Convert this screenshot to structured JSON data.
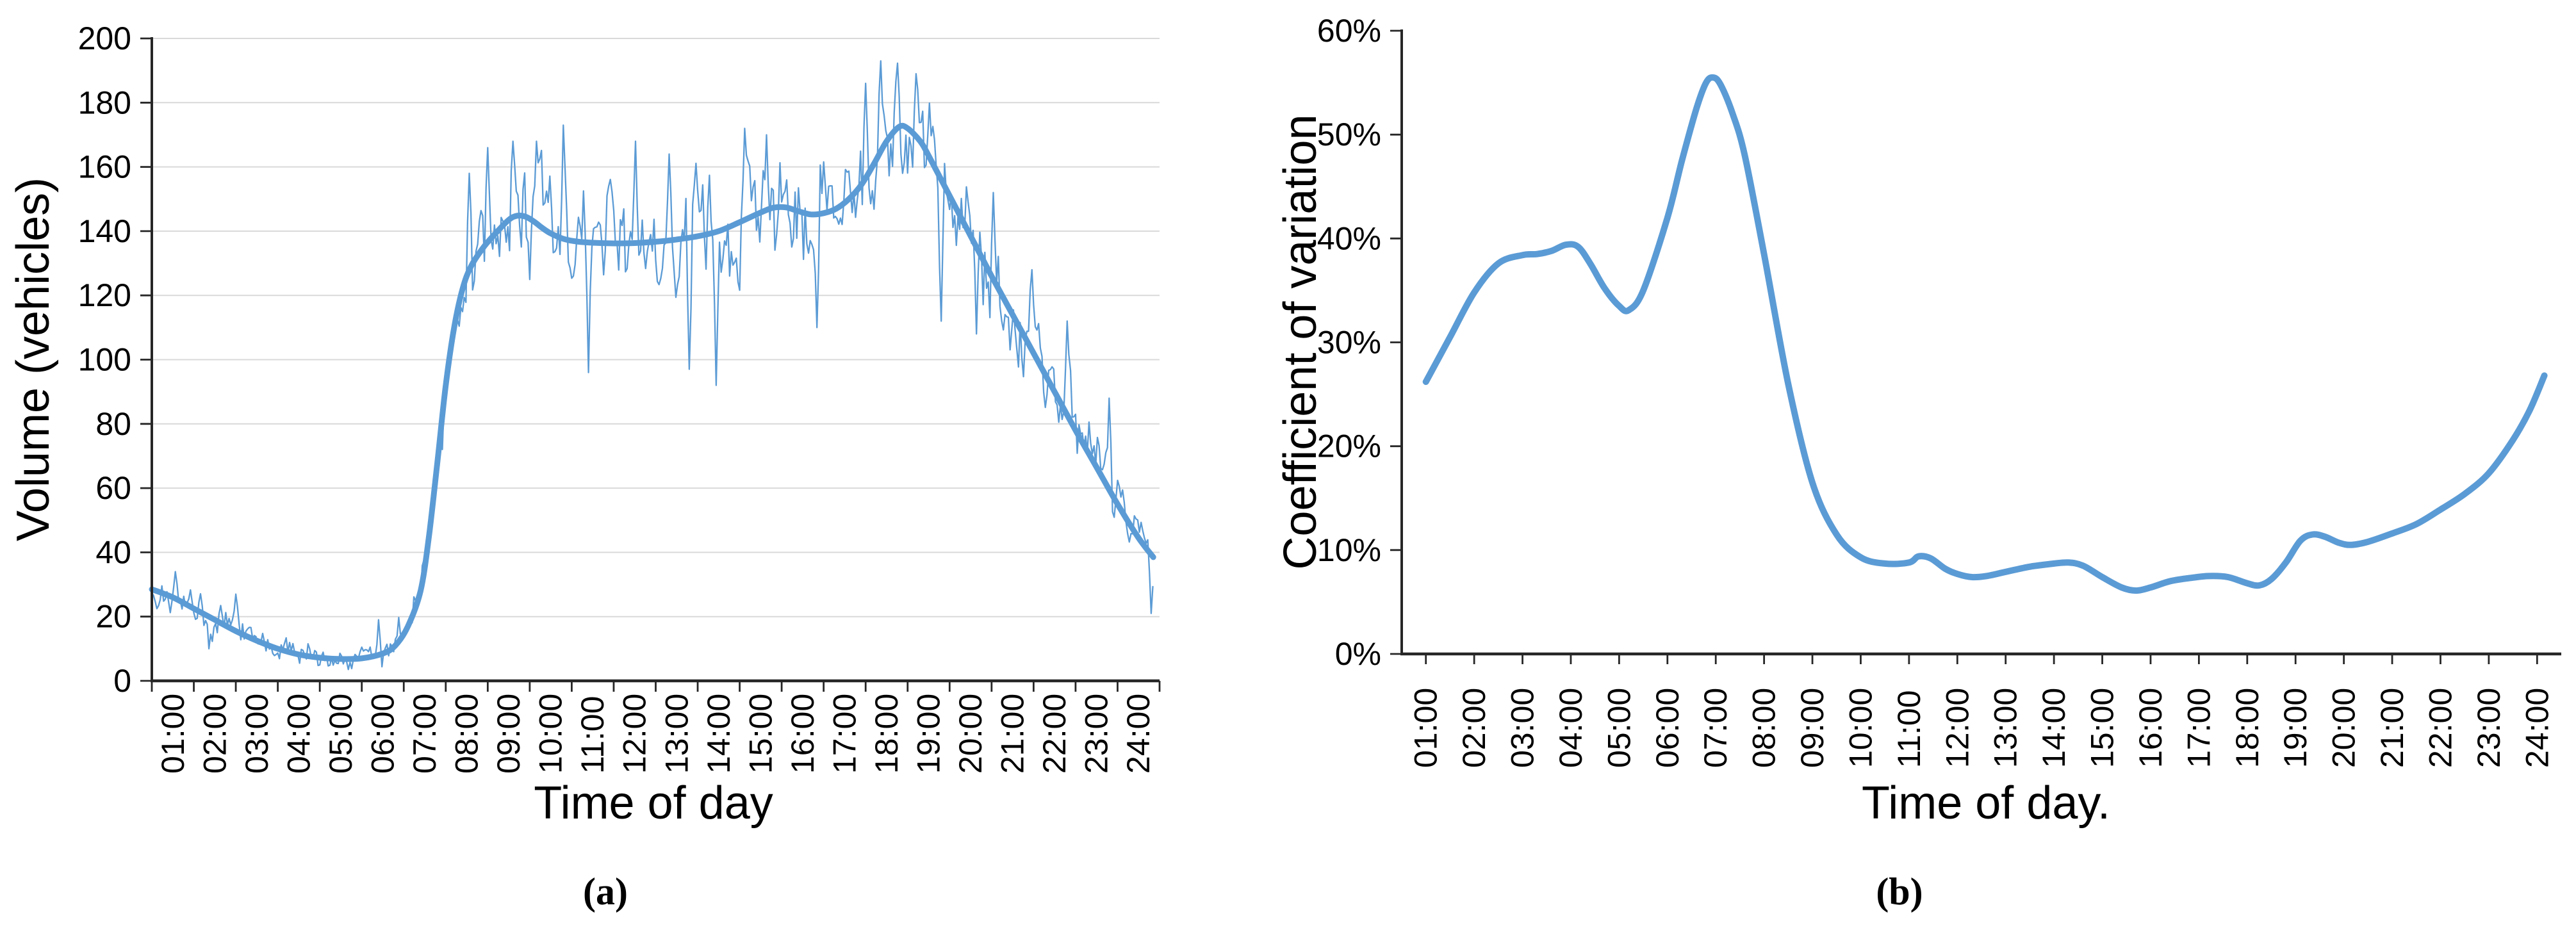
{
  "figure": {
    "background": "#FFFFFF",
    "captions": {
      "a": "(a)",
      "b": "(b)"
    }
  },
  "style": {
    "series_color": "#5B9BD5",
    "grid_color": "#D9D9D9",
    "axis_color": "#262626",
    "text_color": "#000000"
  },
  "chart_data": [
    {
      "id": "a",
      "type": "line",
      "title": "",
      "xlabel": "Time of day",
      "ylabel": "Volume (vehicles)",
      "x_tick_labels": [
        "01:00",
        "02:00",
        "03:00",
        "04:00",
        "05:00",
        "06:00",
        "07:00",
        "08:00",
        "09:00",
        "10:00",
        "11:00",
        "12:00",
        "13:00",
        "14:00",
        "15:00",
        "16:00",
        "17:00",
        "18:00",
        "19:00",
        "20:00",
        "21:00",
        "22:00",
        "23:00",
        "24:00"
      ],
      "y_tick_values": [
        0,
        20,
        40,
        60,
        80,
        100,
        120,
        140,
        160,
        180,
        200
      ],
      "ylim": [
        0,
        200
      ],
      "x_range_hours": [
        0.5,
        24.35
      ],
      "grid": true,
      "legend": "none",
      "trend_keypoints": [
        [
          0.5,
          28.5
        ],
        [
          1,
          26
        ],
        [
          1.5,
          22.5
        ],
        [
          2,
          19
        ],
        [
          2.5,
          15.5
        ],
        [
          3,
          12.5
        ],
        [
          3.5,
          10
        ],
        [
          4,
          8.2
        ],
        [
          4.5,
          7.2
        ],
        [
          5,
          6.8
        ],
        [
          5.5,
          7
        ],
        [
          6,
          8.5
        ],
        [
          6.3,
          11
        ],
        [
          6.6,
          17
        ],
        [
          6.9,
          28
        ],
        [
          7.1,
          45
        ],
        [
          7.3,
          68
        ],
        [
          7.5,
          92
        ],
        [
          7.7,
          110
        ],
        [
          7.9,
          122
        ],
        [
          8.1,
          129
        ],
        [
          8.4,
          135
        ],
        [
          8.7,
          139.5
        ],
        [
          9,
          143.5
        ],
        [
          9.2,
          144.8
        ],
        [
          9.4,
          144.5
        ],
        [
          9.6,
          143
        ],
        [
          9.8,
          141
        ],
        [
          10,
          139.3
        ],
        [
          10.3,
          137.6
        ],
        [
          10.6,
          136.8
        ],
        [
          11,
          136.4
        ],
        [
          11.5,
          136.2
        ],
        [
          12,
          136.3
        ],
        [
          12.5,
          136.7
        ],
        [
          13,
          137.4
        ],
        [
          13.5,
          138.4
        ],
        [
          14,
          140
        ],
        [
          14.5,
          142.8
        ],
        [
          15,
          145.8
        ],
        [
          15.3,
          147.3
        ],
        [
          15.6,
          147.4
        ],
        [
          15.9,
          146.2
        ],
        [
          16.2,
          145.2
        ],
        [
          16.5,
          145.6
        ],
        [
          16.8,
          147
        ],
        [
          17.1,
          150
        ],
        [
          17.4,
          154.5
        ],
        [
          17.7,
          161
        ],
        [
          18,
          168
        ],
        [
          18.3,
          172.5
        ],
        [
          18.5,
          172
        ],
        [
          18.8,
          168
        ],
        [
          19,
          163.5
        ],
        [
          19.5,
          151
        ],
        [
          20,
          138.5
        ],
        [
          20.5,
          126
        ],
        [
          21,
          114
        ],
        [
          21.5,
          102
        ],
        [
          22,
          90
        ],
        [
          22.5,
          78
        ],
        [
          23,
          66.5
        ],
        [
          23.5,
          55
        ],
        [
          24,
          44.5
        ],
        [
          24.35,
          38.5
        ]
      ],
      "series": [
        {
          "name": "observed-5min-volume",
          "kind": "noisy",
          "stroke_width": 2.3,
          "samples_per_hour": 25,
          "seed": 1234567,
          "ar": 0.45,
          "amp_keypoints": [
            [
              0.5,
              4
            ],
            [
              1.5,
              6
            ],
            [
              2.5,
              5.5
            ],
            [
              3.5,
              4
            ],
            [
              4.5,
              3
            ],
            [
              5.5,
              3.5
            ],
            [
              6.5,
              5
            ],
            [
              7.2,
              7
            ],
            [
              7.8,
              10
            ],
            [
              8.5,
              12.5
            ],
            [
              9.5,
              13
            ],
            [
              10.5,
              13
            ],
            [
              11.5,
              12
            ],
            [
              12.5,
              12
            ],
            [
              13.5,
              12.5
            ],
            [
              14.5,
              13.5
            ],
            [
              15.5,
              12.5
            ],
            [
              16.5,
              12
            ],
            [
              17.5,
              12.5
            ],
            [
              18.5,
              11.5
            ],
            [
              19.5,
              12
            ],
            [
              20.5,
              11
            ],
            [
              21.5,
              10
            ],
            [
              22.5,
              9.5
            ],
            [
              23.5,
              8
            ],
            [
              24.35,
              6.5
            ]
          ],
          "spikes": [
            [
              1.05,
              34
            ],
            [
              1.85,
              10
            ],
            [
              2.5,
              27
            ],
            [
              5.9,
              19
            ],
            [
              8.05,
              158
            ],
            [
              8.5,
              166
            ],
            [
              9.1,
              168
            ],
            [
              9.65,
              168
            ],
            [
              10.3,
              173
            ],
            [
              10.9,
              96
            ],
            [
              12,
              168
            ],
            [
              12.8,
              164
            ],
            [
              13.3,
              97
            ],
            [
              13.95,
              92
            ],
            [
              14.6,
              172
            ],
            [
              15.15,
              170
            ],
            [
              16.35,
              110
            ],
            [
              17.5,
              186
            ],
            [
              17.85,
              193
            ],
            [
              18.4,
              158
            ],
            [
              18.7,
              189
            ],
            [
              19.3,
              112
            ],
            [
              20.15,
              108
            ],
            [
              20.55,
              152
            ],
            [
              21.45,
              128
            ],
            [
              22.3,
              112
            ],
            [
              23.3,
              88
            ],
            [
              24.3,
              21
            ]
          ]
        },
        {
          "name": "smoothed-volume-trend",
          "kind": "smooth",
          "stroke_width": 9
        }
      ]
    },
    {
      "id": "b",
      "type": "line",
      "title": "",
      "xlabel": "Time of day.",
      "ylabel": "Coefficient of variation",
      "x_tick_labels": [
        "01:00",
        "02:00",
        "03:00",
        "04:00",
        "05:00",
        "06:00",
        "07:00",
        "08:00",
        "09:00",
        "10:00",
        "11:00",
        "12:00",
        "13:00",
        "14:00",
        "15:00",
        "16:00",
        "17:00",
        "18:00",
        "19:00",
        "20:00",
        "21:00",
        "22:00",
        "23:00",
        "24:00"
      ],
      "y_tick_values": [
        0,
        10,
        20,
        30,
        40,
        50,
        60
      ],
      "y_tick_suffix": "%",
      "ylim": [
        0,
        60
      ],
      "x_range_hours": [
        1,
        24.15
      ],
      "grid": false,
      "legend": "none",
      "trend_keypoints": [
        [
          1,
          26.2
        ],
        [
          1.5,
          30.5
        ],
        [
          2,
          34.8
        ],
        [
          2.5,
          37.6
        ],
        [
          3,
          38.4
        ],
        [
          3.3,
          38.5
        ],
        [
          3.6,
          38.8
        ],
        [
          3.9,
          39.4
        ],
        [
          4.15,
          39.2
        ],
        [
          4.4,
          37.6
        ],
        [
          4.7,
          35.2
        ],
        [
          5,
          33.5
        ],
        [
          5.2,
          33.1
        ],
        [
          5.5,
          35
        ],
        [
          6,
          42
        ],
        [
          6.3,
          47.5
        ],
        [
          6.6,
          52.5
        ],
        [
          6.8,
          55
        ],
        [
          6.95,
          55.5
        ],
        [
          7.1,
          54.8
        ],
        [
          7.35,
          52
        ],
        [
          7.6,
          48
        ],
        [
          8,
          38.5
        ],
        [
          8.5,
          26
        ],
        [
          9,
          16.5
        ],
        [
          9.5,
          11.5
        ],
        [
          10,
          9.3
        ],
        [
          10.5,
          8.7
        ],
        [
          11,
          8.8
        ],
        [
          11.2,
          9.4
        ],
        [
          11.45,
          9.2
        ],
        [
          11.75,
          8.2
        ],
        [
          12,
          7.7
        ],
        [
          12.3,
          7.4
        ],
        [
          12.6,
          7.5
        ],
        [
          13,
          7.9
        ],
        [
          13.5,
          8.4
        ],
        [
          14,
          8.7
        ],
        [
          14.3,
          8.8
        ],
        [
          14.6,
          8.5
        ],
        [
          15,
          7.4
        ],
        [
          15.4,
          6.4
        ],
        [
          15.7,
          6.1
        ],
        [
          16,
          6.4
        ],
        [
          16.4,
          7
        ],
        [
          16.8,
          7.3
        ],
        [
          17.2,
          7.5
        ],
        [
          17.6,
          7.4
        ],
        [
          18,
          6.8
        ],
        [
          18.25,
          6.6
        ],
        [
          18.5,
          7.2
        ],
        [
          18.8,
          8.8
        ],
        [
          19.1,
          10.9
        ],
        [
          19.35,
          11.5
        ],
        [
          19.6,
          11.3
        ],
        [
          19.9,
          10.7
        ],
        [
          20.15,
          10.5
        ],
        [
          20.5,
          10.8
        ],
        [
          21,
          11.6
        ],
        [
          21.5,
          12.5
        ],
        [
          22,
          13.9
        ],
        [
          22.5,
          15.4
        ],
        [
          23,
          17.4
        ],
        [
          23.5,
          20.6
        ],
        [
          23.85,
          23.5
        ],
        [
          24.15,
          26.8
        ]
      ],
      "series": [
        {
          "name": "coefficient-of-variation-curve",
          "kind": "smooth",
          "stroke_width": 10
        }
      ]
    }
  ]
}
